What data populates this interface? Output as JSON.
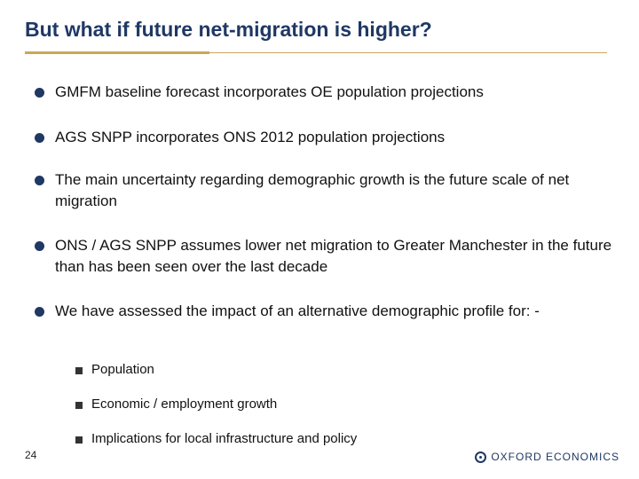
{
  "slide": {
    "title": "But what if future net-migration is higher?",
    "bullets": [
      "GMFM baseline forecast incorporates OE population projections",
      "AGS SNPP incorporates ONS 2012 population projections",
      "The main uncertainty regarding demographic growth is the future scale of net migration",
      "ONS / AGS SNPP assumes lower net migration to Greater Manchester in the future than has been seen over the last decade",
      "We have assessed the impact of an alternative demographic profile for: -"
    ],
    "sub_bullets": [
      "Population",
      "Economic / employment growth",
      "Implications for local infrastructure and policy"
    ],
    "page_number": "24"
  },
  "footer": {
    "logo_text": "OXFORD ECONOMICS"
  },
  "colors": {
    "title": "#1f3864",
    "rule": "#c8a85a",
    "bullet": "#1f3864"
  }
}
